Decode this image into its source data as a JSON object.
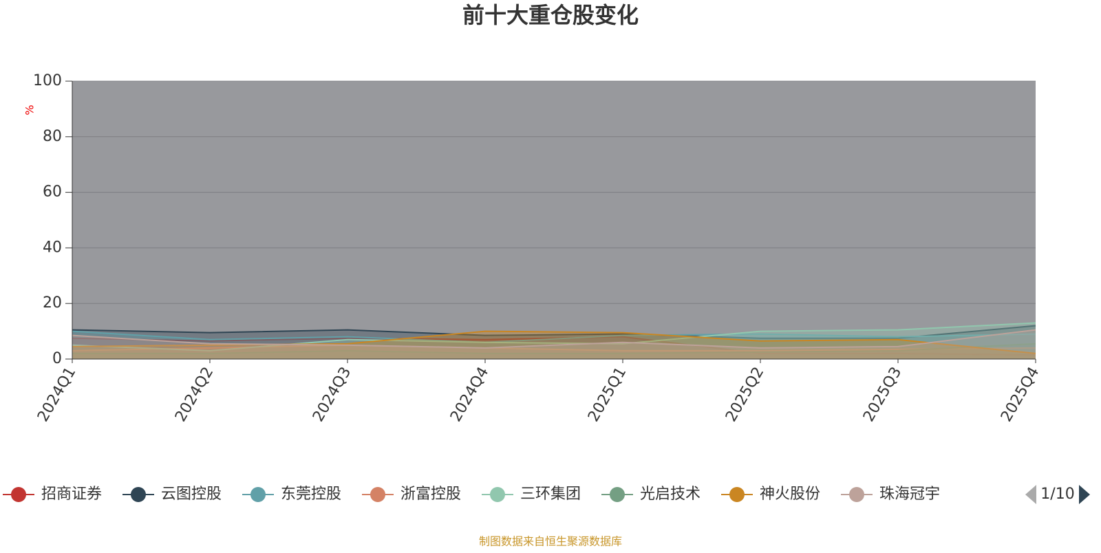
{
  "chart_data": {
    "type": "line",
    "title": "前十大重仓股变化",
    "y_label": "%",
    "categories": [
      "2024Q1",
      "2024Q2",
      "2024Q3",
      "2024Q4",
      "2025Q1",
      "2025Q2",
      "2025Q3",
      "2025Q4"
    ],
    "ylim": [
      0,
      100
    ],
    "yticks": [
      0,
      20,
      40,
      60,
      80,
      100
    ],
    "grid": true,
    "series": [
      {
        "name": "招商证券",
        "color": "#c23531",
        "values": [
          7.5,
          6.5,
          7.5,
          7,
          8,
          2,
          2,
          1.5
        ]
      },
      {
        "name": "云图控股",
        "color": "#2f4554",
        "values": [
          10.5,
          9.5,
          10.5,
          8.5,
          9,
          7.5,
          7.5,
          12
        ]
      },
      {
        "name": "东莞控股",
        "color": "#61a0a8",
        "values": [
          10,
          7,
          8,
          6,
          8.5,
          9,
          8,
          9
        ]
      },
      {
        "name": "浙富控股",
        "color": "#d48265",
        "values": [
          3,
          4,
          5,
          4,
          3,
          3,
          3.5,
          4
        ]
      },
      {
        "name": "三环集团",
        "color": "#91c7ae",
        "values": [
          5,
          3,
          7,
          6,
          5.5,
          10,
          10.5,
          13
        ]
      },
      {
        "name": "光启技术",
        "color": "#749f83",
        "values": [
          2,
          2,
          3,
          2,
          2,
          2.5,
          3,
          5.5
        ]
      },
      {
        "name": "神火股份",
        "color": "#ca8622",
        "values": [
          4.5,
          5,
          5.5,
          10,
          9.5,
          6.5,
          7,
          2
        ]
      },
      {
        "name": "珠海冠宇",
        "color": "#bda29a",
        "values": [
          8.5,
          5.5,
          5,
          4,
          6,
          4,
          4.5,
          10.5
        ]
      }
    ],
    "legend_page": "1/10",
    "source": "制图数据来自恒生聚源数据库"
  }
}
